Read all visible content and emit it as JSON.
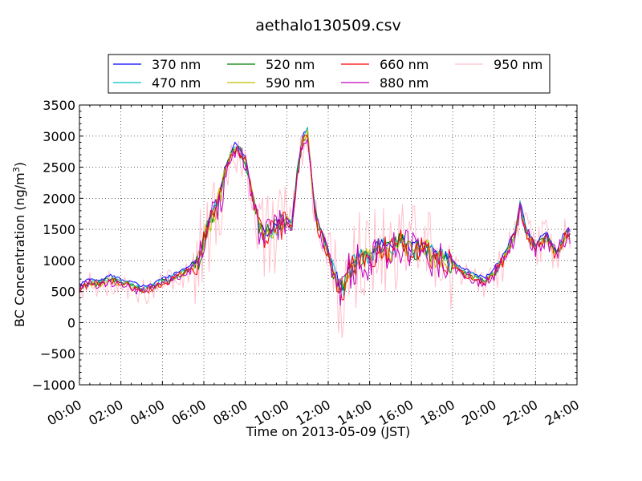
{
  "chart_data": {
    "type": "line",
    "title": "aethalo130509.csv",
    "xlabel": "Time on 2013-05-09 (JST)",
    "ylabel": "BC Concentration (ng/m³)",
    "ylabel_main": "BC Concentration (ng/m",
    "ylabel_sup": "3",
    "ylabel_end": ")",
    "xlim": [
      "00:00",
      "24:00"
    ],
    "ylim": [
      -1000,
      3500
    ],
    "grid": true,
    "legend_position": "top-center",
    "x_tick_labels": [
      "00:00",
      "02:00",
      "04:00",
      "06:00",
      "08:00",
      "10:00",
      "12:00",
      "14:00",
      "16:00",
      "18:00",
      "20:00",
      "22:00",
      "24:00"
    ],
    "y_ticks": [
      -1000,
      -500,
      0,
      500,
      1000,
      1500,
      2000,
      2500,
      3000,
      3500
    ],
    "y_tick_labels": [
      "−1000",
      "−500",
      "0",
      "500",
      "1000",
      "1500",
      "2000",
      "2500",
      "3000",
      "3500"
    ],
    "x_hours": [
      0,
      0.5,
      1,
      1.5,
      2,
      2.5,
      2.75,
      3,
      3.5,
      4,
      4.5,
      5,
      5.5,
      5.75,
      6,
      6.25,
      6.5,
      6.75,
      7,
      7.25,
      7.5,
      7.75,
      8,
      8.25,
      8.5,
      8.75,
      9,
      9.5,
      10,
      10.25,
      10.5,
      10.75,
      11,
      11.25,
      11.5,
      11.75,
      12,
      12.25,
      12.5,
      12.75,
      13,
      13.5,
      14,
      14.5,
      15,
      15.5,
      16,
      16.5,
      17,
      17.5,
      18,
      18.5,
      19,
      19.5,
      20,
      20.5,
      21,
      21.25,
      21.5,
      22,
      22.5,
      23,
      23.5,
      24
    ],
    "series": [
      {
        "name": "370 nm",
        "color": "#0000ff",
        "offset": 60,
        "noise": 40
      },
      {
        "name": "470 nm",
        "color": "#00bfbf",
        "offset": 20,
        "noise": 60
      },
      {
        "name": "520 nm",
        "color": "#007f00",
        "offset": 0,
        "noise": 80
      },
      {
        "name": "590 nm",
        "color": "#bfbf00",
        "offset": -10,
        "noise": 90
      },
      {
        "name": "660 nm",
        "color": "#ff0000",
        "offset": -20,
        "noise": 100
      },
      {
        "name": "880 nm",
        "color": "#bf00bf",
        "offset": -30,
        "noise": 150
      },
      {
        "name": "950 nm",
        "color": "#ffc0cb",
        "offset": -40,
        "noise": 350
      }
    ],
    "base_values": [
      550,
      650,
      620,
      700,
      640,
      600,
      560,
      520,
      560,
      650,
      720,
      800,
      900,
      1000,
      1300,
      1600,
      1800,
      2000,
      2400,
      2650,
      2800,
      2750,
      2600,
      2200,
      1800,
      1500,
      1400,
      1500,
      1650,
      1550,
      2400,
      2900,
      3100,
      2100,
      1550,
      1350,
      1100,
      800,
      600,
      500,
      850,
      1050,
      1000,
      1250,
      1150,
      1300,
      1150,
      1200,
      1100,
      1050,
      950,
      800,
      750,
      650,
      800,
      1050,
      1400,
      1900,
      1500,
      1200,
      1400,
      1100,
      1450,
      1400
    ]
  }
}
